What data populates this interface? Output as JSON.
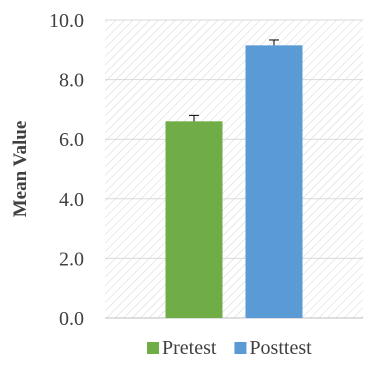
{
  "chart_data": {
    "type": "bar",
    "title": "",
    "xlabel": "",
    "ylabel": "Mean Value",
    "ylim": [
      0,
      10
    ],
    "yticks": [
      "0.0",
      "2.0",
      "4.0",
      "6.0",
      "8.0",
      "10.0"
    ],
    "grid": "hatched plot background with horizontal gridlines",
    "legend_position": "bottom",
    "series": [
      {
        "name": "Pretest",
        "value": 6.6,
        "error": 0.2,
        "color": "#70ad47"
      },
      {
        "name": "Posttest",
        "value": 9.15,
        "error": 0.18,
        "color": "#5b9bd5"
      }
    ]
  }
}
